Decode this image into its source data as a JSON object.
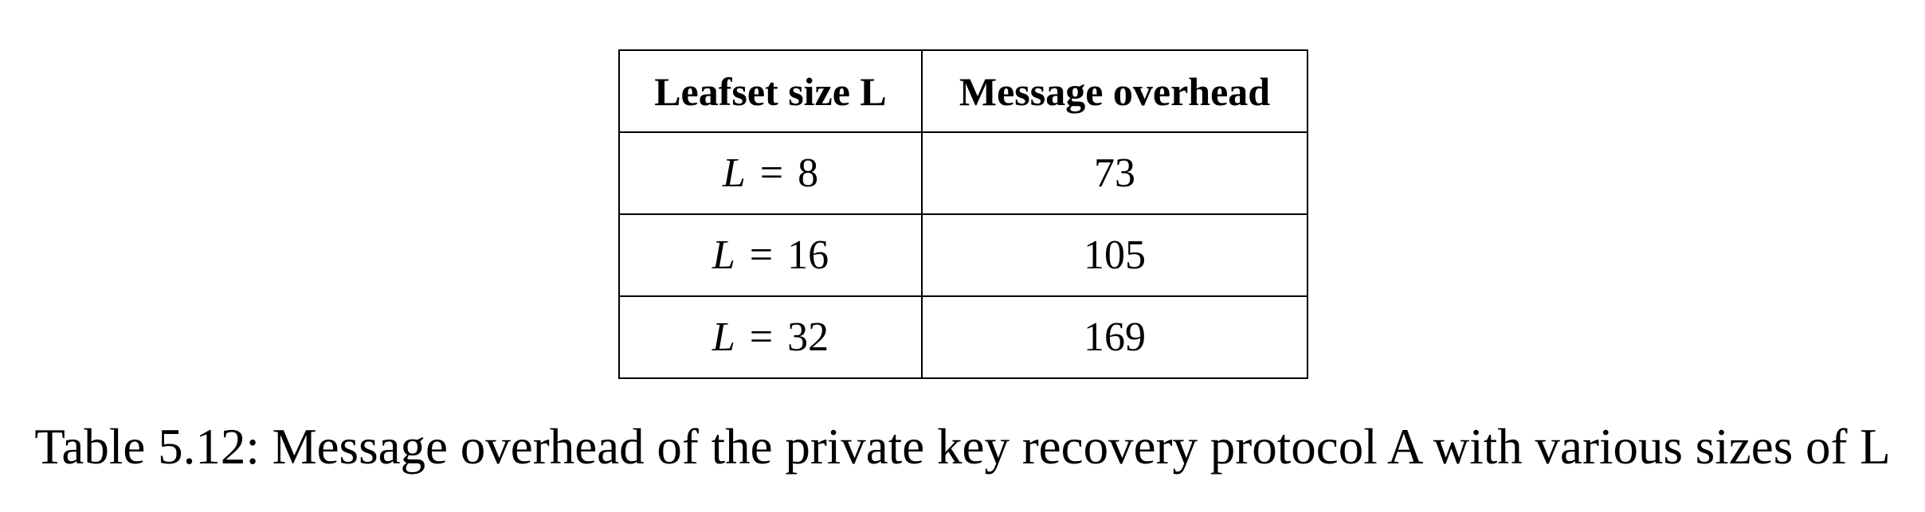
{
  "table": {
    "headers": [
      "Leafset size L",
      "Message overhead"
    ],
    "rows": [
      {
        "var": "L",
        "op": "=",
        "num": "8",
        "overhead": "73"
      },
      {
        "var": "L",
        "op": "=",
        "num": "16",
        "overhead": "105"
      },
      {
        "var": "L",
        "op": "=",
        "num": "32",
        "overhead": "169"
      }
    ]
  },
  "caption": "Table 5.12: Message overhead of the private key recovery protocol A with various sizes of L"
}
